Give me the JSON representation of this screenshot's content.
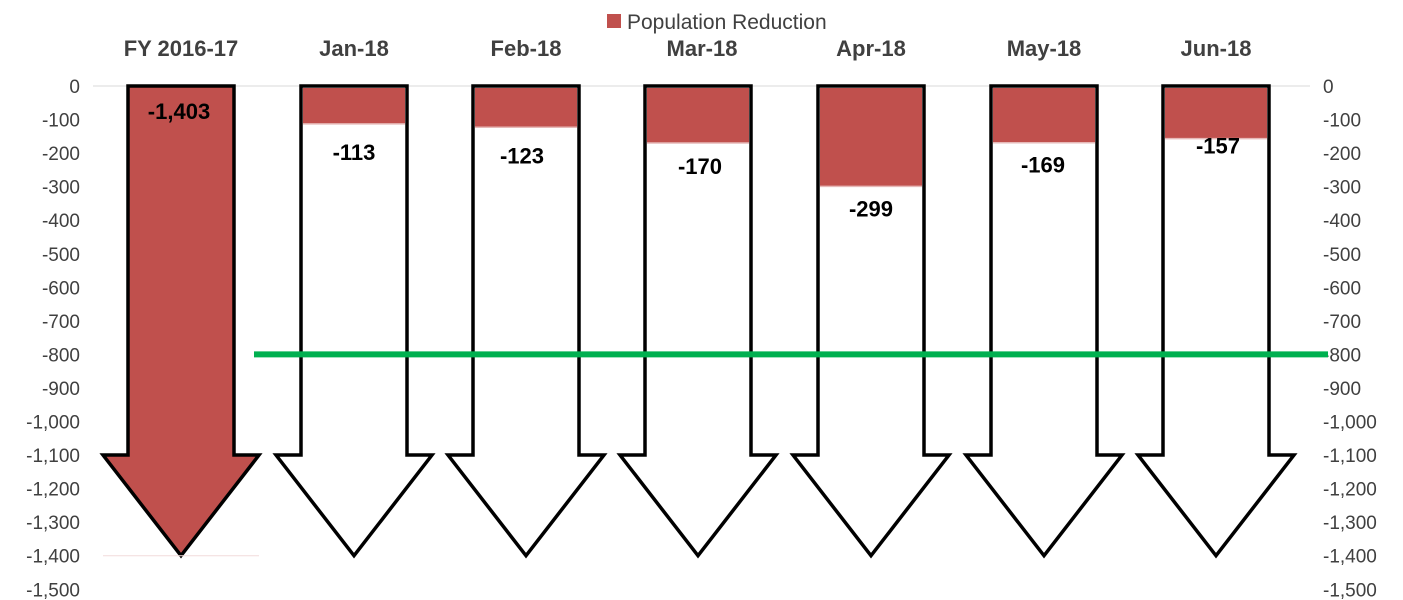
{
  "chart_data": {
    "type": "bar",
    "categories": [
      "FY 2016-17",
      "Jan-18",
      "Feb-18",
      "Mar-18",
      "Apr-18",
      "May-18",
      "Jun-18"
    ],
    "series": [
      {
        "name": "Population Reduction",
        "values": [
          -1403,
          -113,
          -123,
          -170,
          -299,
          -169,
          -157
        ],
        "data_labels": [
          "-1,403",
          "-113",
          "-123",
          "-170",
          "-299",
          "-169",
          "-157"
        ]
      }
    ],
    "arrow_extent": -1400,
    "reference_line": -800,
    "ylim": [
      -1500,
      0
    ],
    "yticks": [
      0,
      -100,
      -200,
      -300,
      -400,
      -500,
      -600,
      -700,
      -800,
      -900,
      -1000,
      -1100,
      -1200,
      -1300,
      -1400,
      -1500
    ],
    "ytick_labels": [
      "0",
      "-100",
      "-200",
      "-300",
      "-400",
      "-500",
      "-600",
      "-700",
      "-800",
      "-900",
      "-1,000",
      "-1,100",
      "-1,200",
      "-1,300",
      "-1,400",
      "-1,500"
    ],
    "secondary_axis": true,
    "legend_position": "top",
    "title": "",
    "xlabel": "",
    "ylabel": "",
    "grid": false,
    "colors": {
      "fill": "#C0504D",
      "outline": "#000000",
      "reference_line": "#00B050",
      "text": "#404040"
    }
  }
}
